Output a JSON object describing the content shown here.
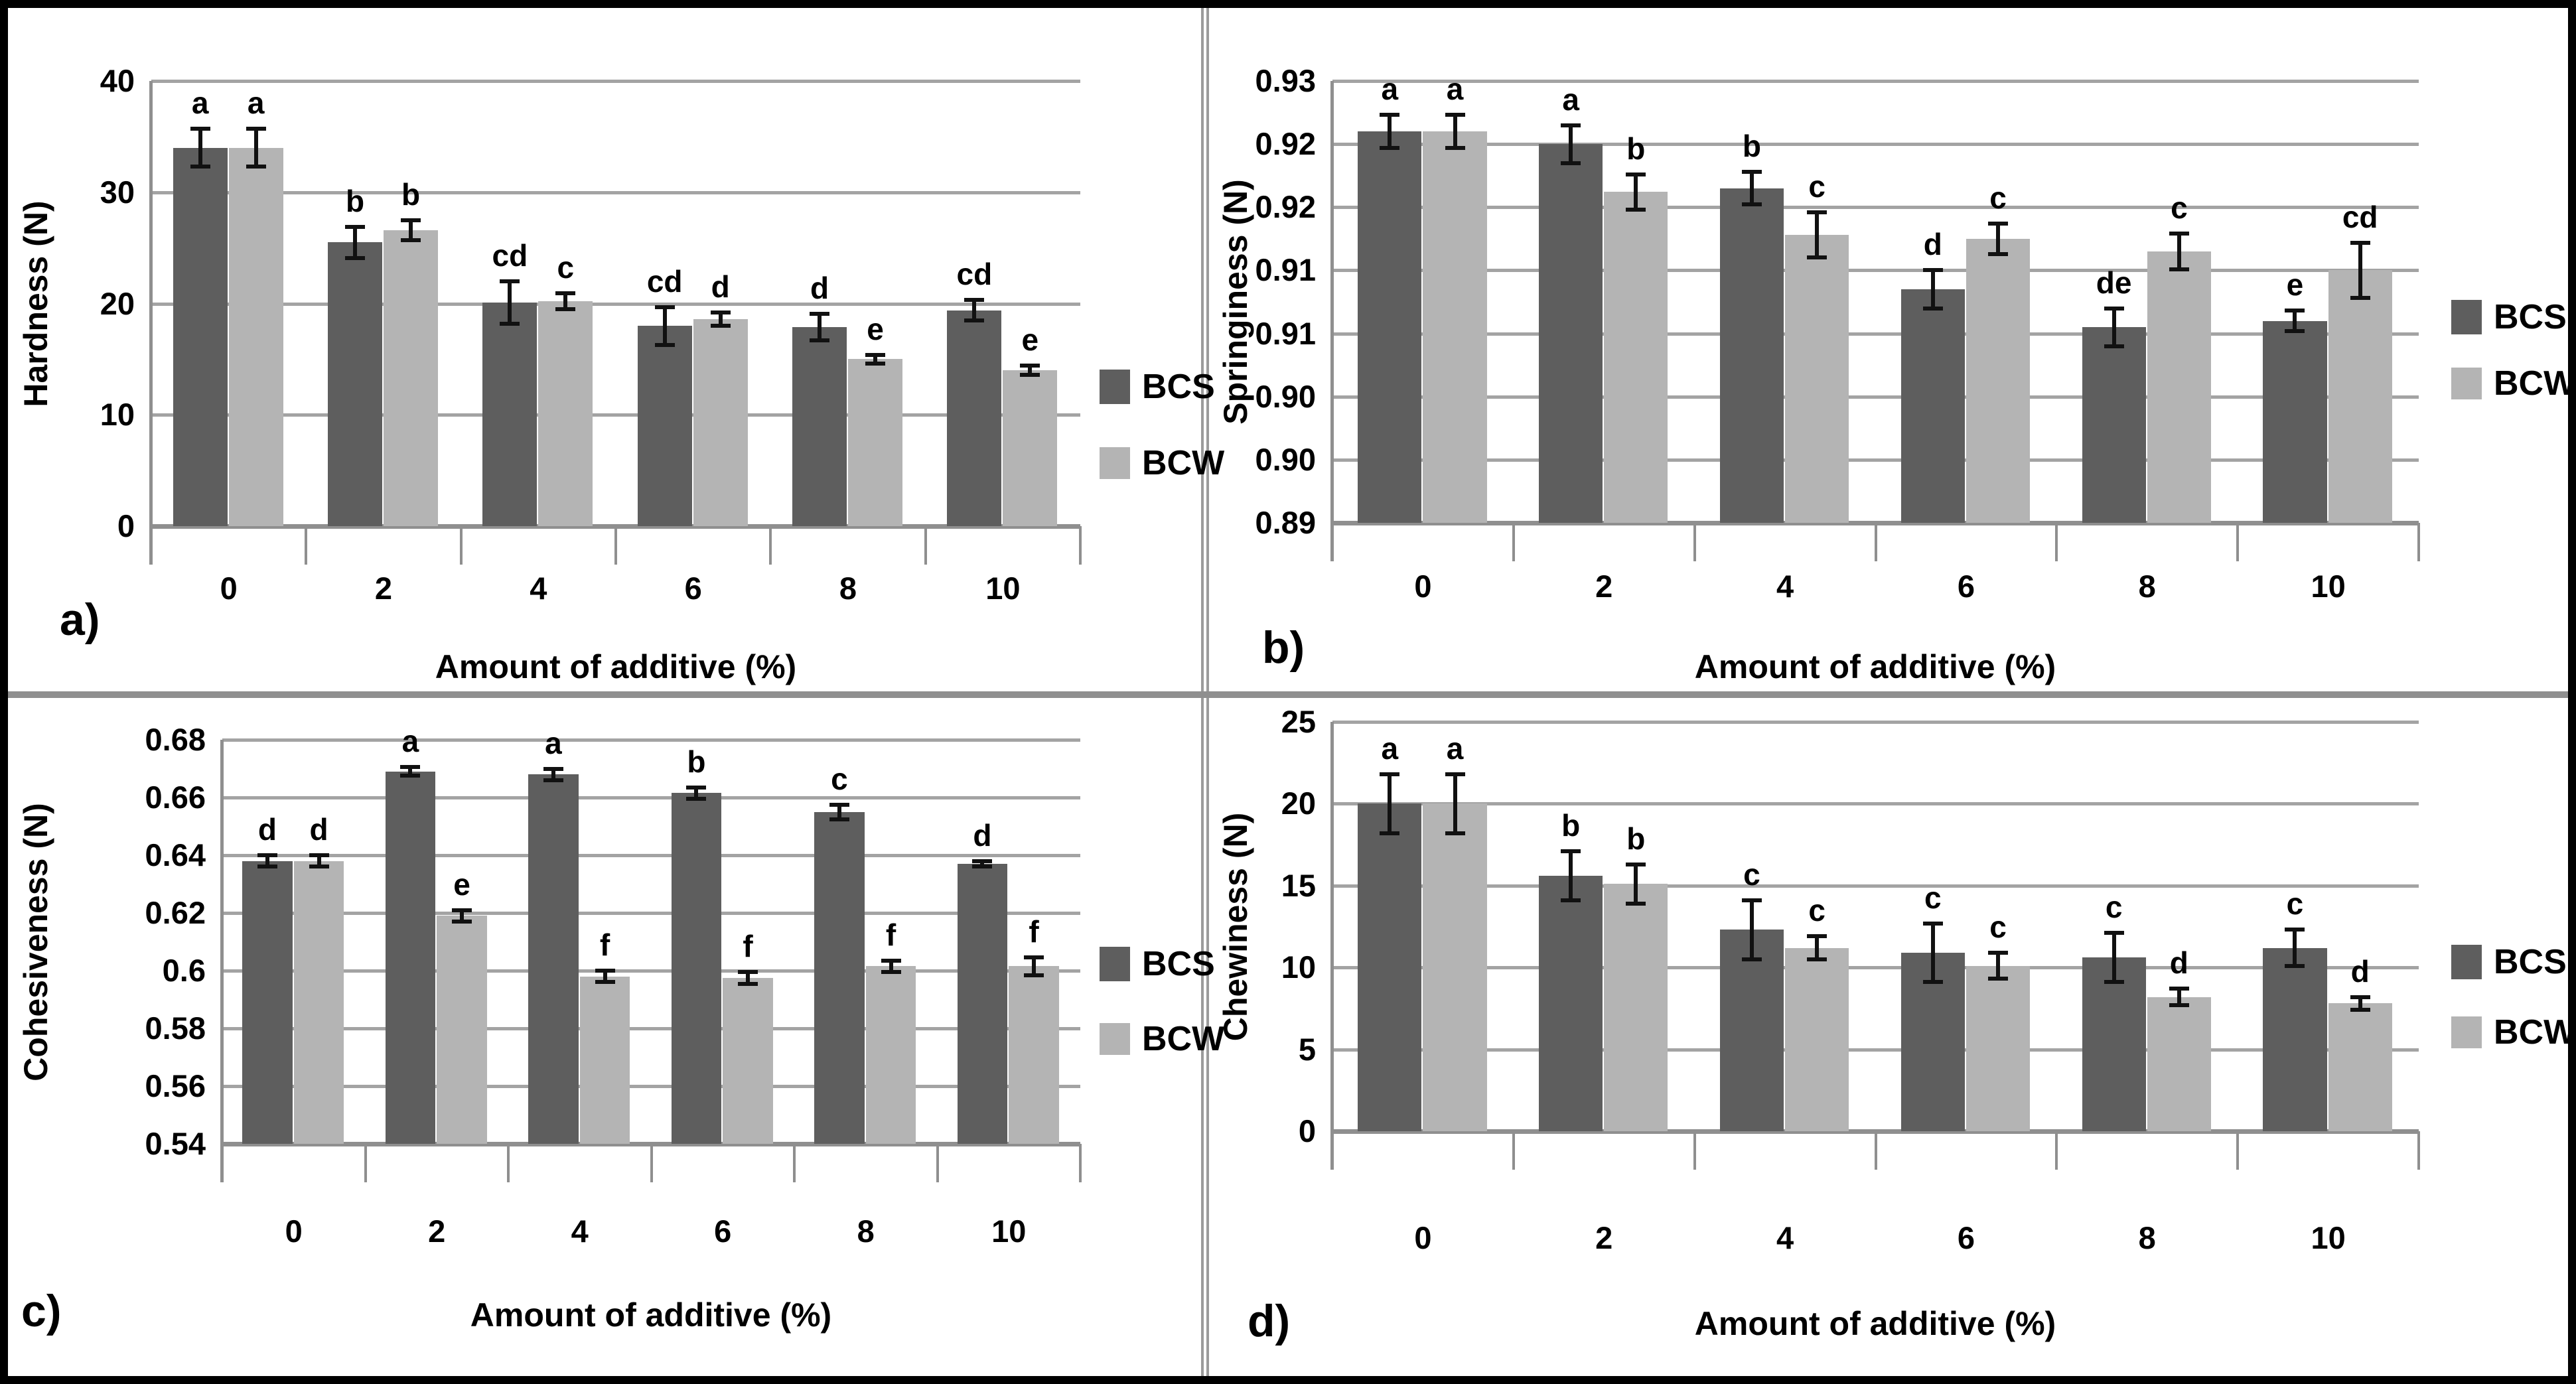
{
  "figure": {
    "kind": "2x2 grouped bar chart figure with error bars and significance letters",
    "x_axis_title": "Amount of additive (%)",
    "legend": {
      "series1": "BCS",
      "series2": "BCW"
    }
  },
  "colors": {
    "bcs_bar": "#5e5e5e",
    "bcw_bar": "#b4b4b4",
    "gridline": "#a3a3a3",
    "axis": "#8f8f8f",
    "error_bar": "#111111",
    "text": "#000000",
    "outer_border": "#000000",
    "panel_divider": "#8f8f8f"
  },
  "chart_data": [
    {
      "id": "a",
      "type": "bar",
      "panel_label": "a)",
      "title": "",
      "ylabel": "Hardness (N)",
      "xlabel": "Amount of additive (%)",
      "categories": [
        "0",
        "2",
        "4",
        "6",
        "8",
        "10"
      ],
      "ylim": [
        0,
        40
      ],
      "grid": true,
      "legend_position": "right",
      "yticks": {
        "values": [
          40,
          30,
          20,
          10,
          0
        ],
        "labels": [
          "40",
          "30",
          "20",
          "10",
          "0"
        ]
      },
      "series": [
        {
          "name": "BCS",
          "values": [
            34.0,
            25.5,
            20.1,
            18.0,
            17.9,
            19.4
          ],
          "errors": [
            1.7,
            1.4,
            1.9,
            1.7,
            1.2,
            0.9
          ],
          "letters": [
            "a",
            "b",
            "cd",
            "cd",
            "d",
            "cd"
          ]
        },
        {
          "name": "BCW",
          "values": [
            34.0,
            26.6,
            20.2,
            18.6,
            15.0,
            14.0
          ],
          "errors": [
            1.7,
            0.9,
            0.7,
            0.6,
            0.4,
            0.4
          ],
          "letters": [
            "a",
            "b",
            "c",
            "d",
            "e",
            "e"
          ]
        }
      ]
    },
    {
      "id": "b",
      "type": "bar",
      "panel_label": "b)",
      "title": "",
      "ylabel": "Springiness (N)",
      "xlabel": "Amount of additive (%)",
      "categories": [
        "0",
        "2",
        "4",
        "6",
        "8",
        "10"
      ],
      "ylim": [
        0.895,
        0.93
      ],
      "grid": true,
      "legend_position": "right",
      "yticks": {
        "values": [
          0.93,
          0.925,
          0.92,
          0.915,
          0.91,
          0.905,
          0.9,
          0.895
        ],
        "labels": [
          "0.93",
          "0.92",
          "0.92",
          "0.91",
          "0.91",
          "0.90",
          "0.90",
          "0.89"
        ]
      },
      "series": [
        {
          "name": "BCS",
          "values": [
            0.926,
            0.925,
            0.9215,
            0.9135,
            0.9105,
            0.911
          ],
          "errors": [
            0.0013,
            0.0015,
            0.0013,
            0.0015,
            0.0015,
            0.0008
          ],
          "letters": [
            "a",
            "a",
            "b",
            "d",
            "de",
            "e"
          ]
        },
        {
          "name": "BCW",
          "values": [
            0.926,
            0.9212,
            0.9178,
            0.9175,
            0.9165,
            0.915
          ],
          "errors": [
            0.0013,
            0.0014,
            0.0018,
            0.0012,
            0.0014,
            0.0022
          ],
          "letters": [
            "a",
            "b",
            "c",
            "c",
            "c",
            "cd"
          ]
        }
      ]
    },
    {
      "id": "c",
      "type": "bar",
      "panel_label": "c)",
      "title": "",
      "ylabel": "Cohesiveness (N)",
      "xlabel": "Amount of additive (%)",
      "categories": [
        "0",
        "2",
        "4",
        "6",
        "8",
        "10"
      ],
      "ylim": [
        0.54,
        0.68
      ],
      "grid": true,
      "legend_position": "right",
      "yticks": {
        "values": [
          0.68,
          0.66,
          0.64,
          0.62,
          0.6,
          0.58,
          0.56,
          0.54
        ],
        "labels": [
          "0.68",
          "0.66",
          "0.64",
          "0.62",
          "0.6",
          "0.58",
          "0.56",
          "0.54"
        ]
      },
      "series": [
        {
          "name": "BCS",
          "values": [
            0.638,
            0.669,
            0.668,
            0.6615,
            0.655,
            0.637
          ],
          "errors": [
            0.002,
            0.0015,
            0.002,
            0.002,
            0.0025,
            0.001
          ],
          "letters": [
            "d",
            "a",
            "a",
            "b",
            "c",
            "d"
          ]
        },
        {
          "name": "BCW",
          "values": [
            0.638,
            0.619,
            0.598,
            0.5975,
            0.6015,
            0.6015
          ],
          "errors": [
            0.002,
            0.002,
            0.002,
            0.002,
            0.002,
            0.003
          ],
          "letters": [
            "d",
            "e",
            "f",
            "f",
            "f",
            "f"
          ]
        }
      ]
    },
    {
      "id": "d",
      "type": "bar",
      "panel_label": "d)",
      "title": "",
      "ylabel": "Chewiness (N)",
      "xlabel": "Amount of additive (%)",
      "categories": [
        "0",
        "2",
        "4",
        "6",
        "8",
        "10"
      ],
      "ylim": [
        0,
        25
      ],
      "grid": true,
      "legend_position": "right",
      "yticks": {
        "values": [
          25,
          20,
          15,
          10,
          5,
          0
        ],
        "labels": [
          "25",
          "20",
          "15",
          "10",
          "5",
          "0"
        ]
      },
      "series": [
        {
          "name": "BCS",
          "values": [
            20.0,
            15.6,
            12.3,
            10.9,
            10.6,
            11.2
          ],
          "errors": [
            1.8,
            1.5,
            1.8,
            1.8,
            1.5,
            1.1
          ],
          "letters": [
            "a",
            "b",
            "c",
            "c",
            "c",
            "c"
          ]
        },
        {
          "name": "BCW",
          "values": [
            20.0,
            15.1,
            11.2,
            10.1,
            8.2,
            7.8
          ],
          "errors": [
            1.8,
            1.2,
            0.7,
            0.8,
            0.5,
            0.4
          ],
          "letters": [
            "a",
            "b",
            "c",
            "c",
            "d",
            "d"
          ]
        }
      ]
    }
  ]
}
